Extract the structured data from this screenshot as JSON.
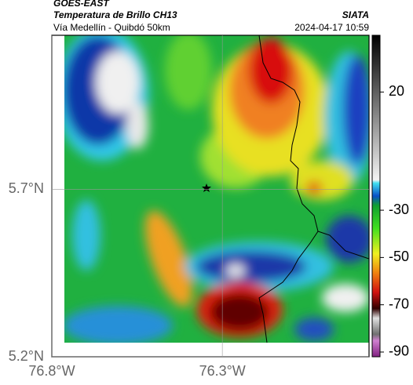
{
  "header": {
    "satellite": "GOES-EAST",
    "product": "Temperatura de Brillo CH13",
    "source": "SIATA",
    "route": "Vía Medellín - Quibdó 50km",
    "timestamp": "2024-04-17 10:59"
  },
  "map": {
    "lat_range": [
      5.2,
      6.16
    ],
    "lon_range": [
      -76.8,
      -75.87
    ],
    "lat_ticks": [
      {
        "value": 5.7,
        "label": "5.7°N"
      },
      {
        "value": 5.2,
        "label": "5.2°N"
      }
    ],
    "lon_ticks": [
      {
        "value": -76.8,
        "label": "76.8°W"
      },
      {
        "value": -76.3,
        "label": "76.3°W"
      }
    ],
    "colorbar": {
      "range": [
        -92,
        44
      ],
      "ticks": [
        20,
        -30,
        -50,
        -70,
        -90
      ]
    }
  }
}
